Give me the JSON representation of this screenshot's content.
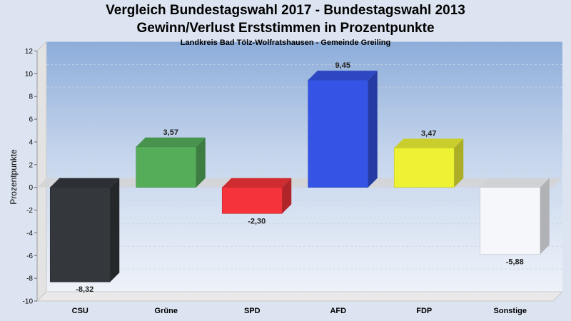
{
  "header": {
    "title_line1": "Vergleich Bundestagswahl 2017 - Bundestagswahl 2013",
    "title_line2": "Gewinn/Verlust Erststimmen in Prozentpunkte",
    "subtitle": "Landkreis Bad Tölz-Wolfratshausen - Gemeinde Greiling"
  },
  "chart_data": {
    "type": "bar",
    "title": "Vergleich Bundestagswahl 2017 - Bundestagswahl 2013 / Gewinn/Verlust Erststimmen in Prozentpunkte",
    "subtitle": "Landkreis Bad Tölz-Wolfratshausen - Gemeinde Greiling",
    "xlabel": "",
    "ylabel": "Prozentpunkte",
    "ylim": [
      -10,
      12
    ],
    "yticks": [
      -10,
      -8,
      -6,
      -4,
      -2,
      0,
      2,
      4,
      6,
      8,
      10,
      12
    ],
    "categories": [
      "CSU",
      "Grüne",
      "SPD",
      "AFD",
      "FDP",
      "Sonstige"
    ],
    "values": [
      -8.32,
      3.57,
      -2.3,
      9.45,
      3.47,
      -5.88
    ],
    "value_labels": [
      "-8,32",
      "3,57",
      "-2,30",
      "9,45",
      "3,47",
      "-5,88"
    ],
    "colors": [
      "#34373c",
      "#55ad5a",
      "#f4343a",
      "#3553e4",
      "#eef235",
      "#f6f7fb"
    ],
    "grid": true,
    "legend": "none"
  }
}
